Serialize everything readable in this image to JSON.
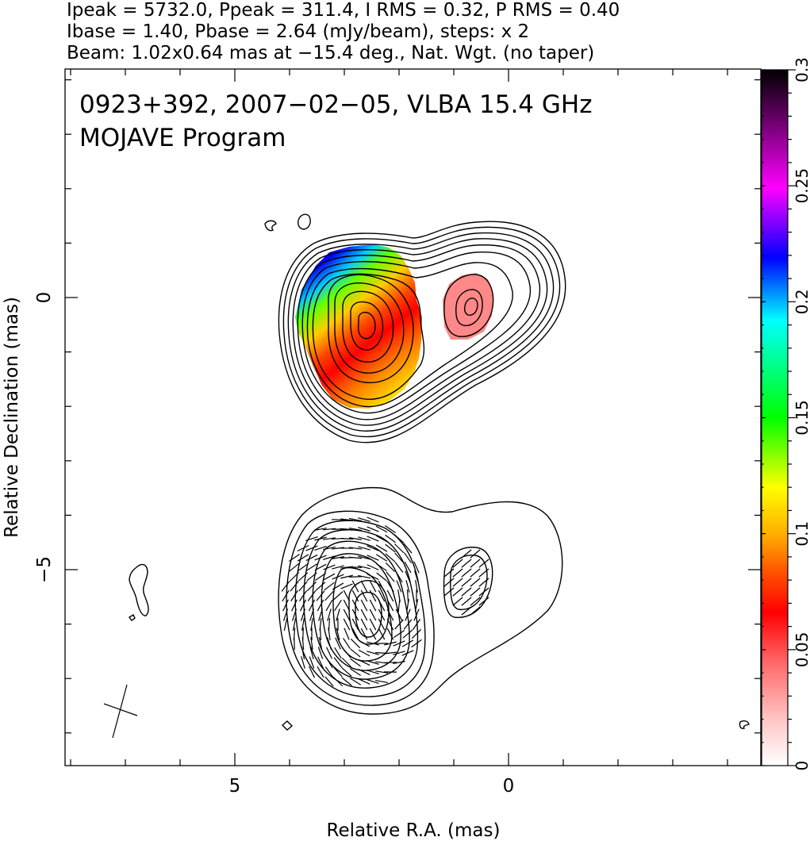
{
  "header": {
    "line1": "Ipeak = 5732.0, Ppeak = 311.4, I RMS = 0.32, P RMS = 0.40",
    "line2": "Ibase = 1.40, Pbase = 2.64 (mJy/beam), steps: x 2",
    "line3": "Beam: 1.02x0.64 mas at −15.4 deg., Nat. Wgt. (no taper)"
  },
  "annotation": {
    "line1": "0923+392, 2007−02−05, VLBA 15.4 GHz",
    "line2": "MOJAVE Program"
  },
  "chart_data": {
    "type": "heatmap",
    "subtype": "radio-polarization-contour-map",
    "source": "0923+392",
    "date": "2007-02-05",
    "instrument": "VLBA 15.4 GHz",
    "program": "MOJAVE Program",
    "xlabel": "Relative R.A. (mas)",
    "ylabel": "Relative Declination (mas)",
    "x_ticks": [
      {
        "value": 5,
        "label": "5"
      },
      {
        "value": 0,
        "label": "0"
      }
    ],
    "y_ticks": [
      {
        "value": 0,
        "label": "0"
      },
      {
        "value": -5,
        "label": "−5"
      }
    ],
    "xlim": [
      8.1,
      -4.6
    ],
    "ylim_top_panel": [
      4.2,
      -8.5
    ],
    "x_reversed": true,
    "colorbar": {
      "min": 0,
      "max": 0.3,
      "ticks": [
        {
          "value": 0,
          "label": "0"
        },
        {
          "value": 0.05,
          "label": "0.05"
        },
        {
          "value": 0.1,
          "label": "0.1"
        },
        {
          "value": 0.15,
          "label": "0.15"
        },
        {
          "value": 0.2,
          "label": "0.2"
        },
        {
          "value": 0.25,
          "label": "0.25"
        },
        {
          "value": 0.3,
          "label": "0.3"
        }
      ],
      "colormap": [
        "#ffffff",
        "#ff9999",
        "#ff0000",
        "#ff8800",
        "#ffff00",
        "#00ff00",
        "#00ffff",
        "#0000ff",
        "#ff00ff",
        "#550055",
        "#000000"
      ]
    },
    "stats": {
      "Ipeak_mJy_per_beam": 5732.0,
      "Ppeak_mJy_per_beam": 311.4,
      "I_RMS": 0.32,
      "P_RMS": 0.4,
      "Ibase": 1.4,
      "Pbase": 2.64,
      "contour_step_factor": 2
    },
    "beam": {
      "major_mas": 1.02,
      "minor_mas": 0.64,
      "pa_deg": -15.4,
      "weighting": "Natural",
      "taper": "none"
    },
    "components": [
      {
        "panel": "total-intensity",
        "x_mas": 2.7,
        "y_mas": -0.6,
        "role": "core"
      },
      {
        "panel": "total-intensity",
        "x_mas": 0.8,
        "y_mas": -0.1,
        "role": "jet-knot"
      },
      {
        "panel": "polarized-intensity",
        "x_mas": 2.6,
        "y_mas": -5.8,
        "role": "core"
      },
      {
        "panel": "polarized-intensity",
        "x_mas": 0.8,
        "y_mas": -5.3,
        "role": "jet-knot"
      }
    ],
    "grid": false
  }
}
